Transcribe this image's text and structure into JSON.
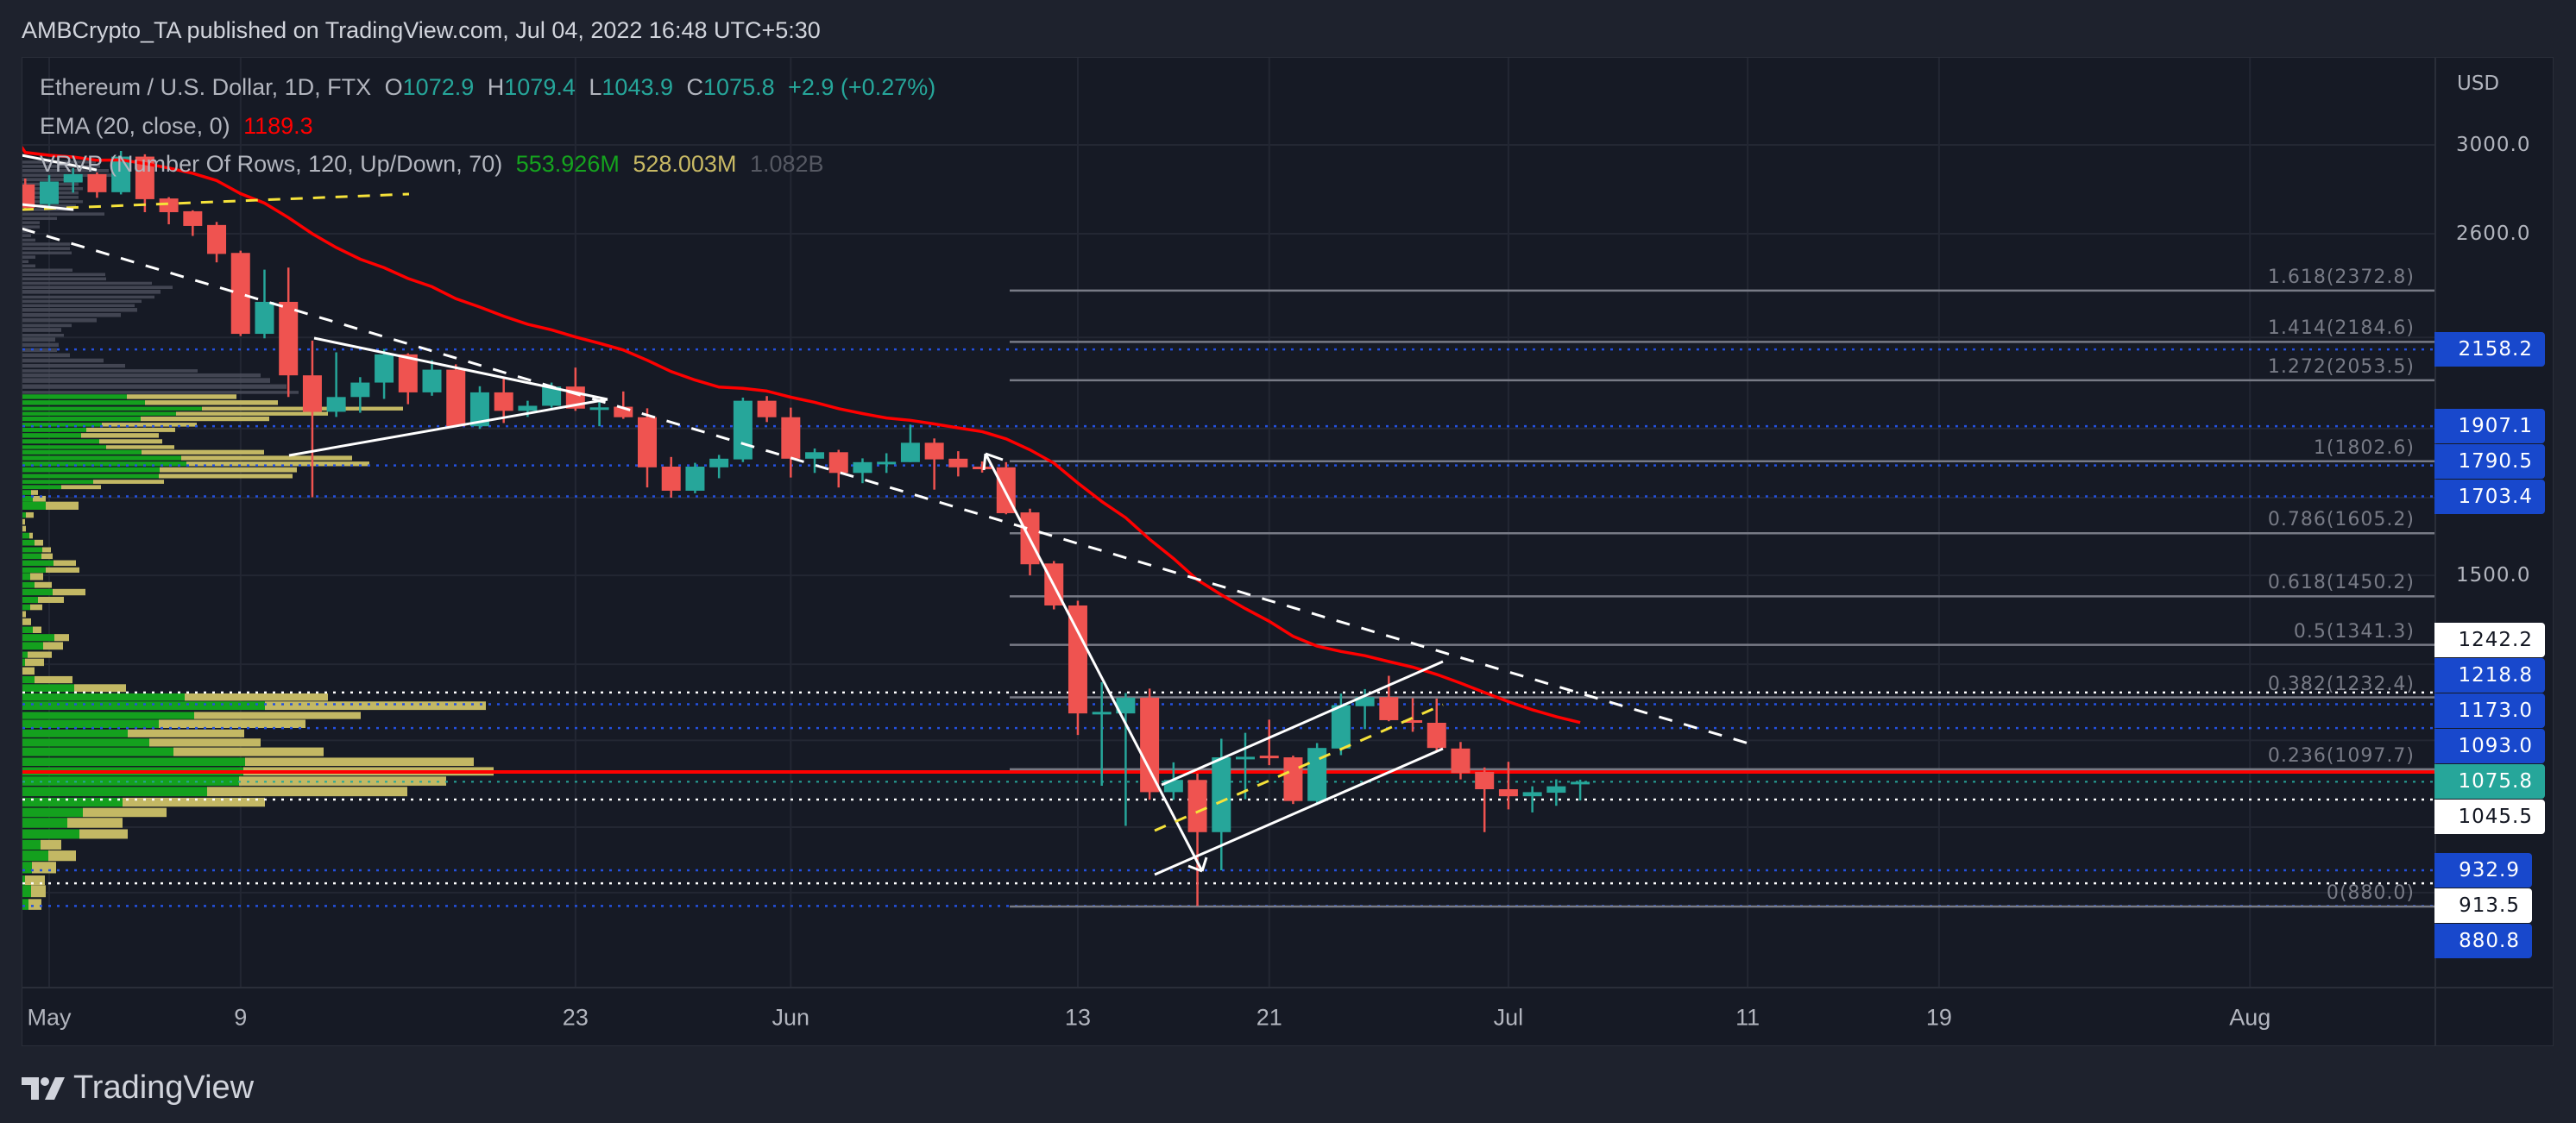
{
  "header": {
    "title": "AMBCrypto_TA published on TradingView.com, Jul 04, 2022 16:48 UTC+5:30"
  },
  "legend": {
    "symbol": "Ethereum / U.S. Dollar, 1D, FTX",
    "o_label": "O",
    "o": "1072.9",
    "h_label": "H",
    "h": "1079.4",
    "l_label": "L",
    "l": "1043.9",
    "c_label": "C",
    "c": "1075.8",
    "change": "+2.9 (+0.27%)",
    "ema_label": "EMA (20, close, 0)",
    "ema_value": "1189.3",
    "vrvp_label": "VRVP (Number Of Rows, 120, Up/Down, 70)",
    "vrvp_up": "553.926M",
    "vrvp_down": "528.003M",
    "vrvp_total": "1.082B"
  },
  "colors": {
    "up": "#26a69a",
    "down": "#ef5350",
    "ema": "#ff0000",
    "vp_up": "#14a01e",
    "vp_down": "#c3b864",
    "vp_outside": "#4a4e5a",
    "marker_blue": "#1848cc",
    "fib": "#787b86"
  },
  "price_axis": {
    "currency": "USD",
    "ticks": [
      {
        "label": "3000.0",
        "value": 3000
      },
      {
        "label": "2600.0",
        "value": 2600
      },
      {
        "label": "1500.0",
        "value": 1500
      }
    ],
    "markers": [
      {
        "label": "2158.2",
        "style": "blue"
      },
      {
        "label": "1907.1",
        "style": "blue"
      },
      {
        "label": "1790.5",
        "style": "blue"
      },
      {
        "label": "1703.4",
        "style": "blue"
      },
      {
        "label": "1242.2",
        "style": "white"
      },
      {
        "label": "1218.8",
        "style": "blue"
      },
      {
        "label": "1173.0",
        "style": "blue"
      },
      {
        "label": "1093.0",
        "style": "blue"
      },
      {
        "label": "1075.8",
        "style": "current"
      },
      {
        "label": "1045.5",
        "style": "white"
      },
      {
        "label": "932.9",
        "style": "blue"
      },
      {
        "label": "913.5",
        "style": "white"
      },
      {
        "label": "880.8",
        "style": "blue"
      }
    ]
  },
  "time_axis": [
    {
      "label": "May",
      "date": "2022-05-01"
    },
    {
      "label": "9",
      "date": "2022-05-09"
    },
    {
      "label": "23",
      "date": "2022-05-23"
    },
    {
      "label": "Jun",
      "date": "2022-06-01"
    },
    {
      "label": "13",
      "date": "2022-06-13"
    },
    {
      "label": "21",
      "date": "2022-06-21"
    },
    {
      "label": "Jul",
      "date": "2022-07-01"
    },
    {
      "label": "11",
      "date": "2022-07-11"
    },
    {
      "label": "19",
      "date": "2022-07-19"
    },
    {
      "label": "Aug",
      "date": "2022-08-01"
    }
  ],
  "chart_data": {
    "type": "candlestick",
    "title": "Ethereum / U.S. Dollar, 1D, FTX",
    "y_scale": "log",
    "ylim": [
      800,
      3100
    ],
    "xlim": [
      "2022-04-30",
      "2022-08-06"
    ],
    "grid": true,
    "candles": [
      [
        "2022-04-30",
        2815,
        2842,
        2705,
        2711
      ],
      [
        "2022-05-01",
        2727,
        2857,
        2711,
        2828
      ],
      [
        "2022-05-02",
        2824,
        2890,
        2778,
        2862
      ],
      [
        "2022-05-03",
        2862,
        2870,
        2755,
        2780
      ],
      [
        "2022-05-04",
        2780,
        2971,
        2770,
        2944
      ],
      [
        "2022-05-05",
        2944,
        2955,
        2692,
        2749
      ],
      [
        "2022-05-06",
        2752,
        2758,
        2640,
        2692
      ],
      [
        "2022-05-07",
        2696,
        2700,
        2591,
        2633
      ],
      [
        "2022-05-08",
        2637,
        2650,
        2483,
        2517
      ],
      [
        "2022-05-09",
        2521,
        2530,
        2205,
        2213
      ],
      [
        "2022-05-10",
        2213,
        2454,
        2197,
        2330
      ],
      [
        "2022-05-11",
        2330,
        2462,
        1999,
        2070
      ],
      [
        "2022-05-12",
        2070,
        2189,
        1701,
        1952
      ],
      [
        "2022-05-13",
        1952,
        2148,
        1936,
        1999
      ],
      [
        "2022-05-14",
        1999,
        2064,
        1949,
        2046
      ],
      [
        "2022-05-15",
        2046,
        2160,
        1993,
        2141
      ],
      [
        "2022-05-16",
        2141,
        2145,
        1976,
        2014
      ],
      [
        "2022-05-17",
        2014,
        2121,
        2003,
        2089
      ],
      [
        "2022-05-18",
        2089,
        2107,
        1905,
        1907
      ],
      [
        "2022-05-19",
        1907,
        2034,
        1899,
        2014
      ],
      [
        "2022-05-20",
        2014,
        2059,
        1917,
        1955
      ],
      [
        "2022-05-21",
        1955,
        1987,
        1936,
        1971
      ],
      [
        "2022-05-22",
        1971,
        2046,
        1965,
        2033
      ],
      [
        "2022-05-23",
        2033,
        2096,
        1955,
        1962
      ],
      [
        "2022-05-24",
        1962,
        1982,
        1907,
        1966
      ],
      [
        "2022-05-25",
        1968,
        2017,
        1930,
        1935
      ],
      [
        "2022-05-26",
        1935,
        1963,
        1728,
        1785
      ],
      [
        "2022-05-27",
        1787,
        1815,
        1700,
        1719
      ],
      [
        "2022-05-28",
        1719,
        1798,
        1712,
        1787
      ],
      [
        "2022-05-29",
        1785,
        1821,
        1754,
        1810
      ],
      [
        "2022-05-30",
        1808,
        1997,
        1800,
        1987
      ],
      [
        "2022-05-31",
        1987,
        2002,
        1920,
        1935
      ],
      [
        "2022-06-01",
        1935,
        1965,
        1756,
        1810
      ],
      [
        "2022-06-02",
        1810,
        1840,
        1769,
        1829
      ],
      [
        "2022-06-03",
        1829,
        1836,
        1728,
        1769
      ],
      [
        "2022-06-04",
        1769,
        1811,
        1740,
        1800
      ],
      [
        "2022-06-05",
        1800,
        1826,
        1769,
        1801
      ],
      [
        "2022-06-06",
        1800,
        1912,
        1800,
        1857
      ],
      [
        "2022-06-07",
        1857,
        1870,
        1722,
        1808
      ],
      [
        "2022-06-08",
        1810,
        1832,
        1759,
        1785
      ],
      [
        "2022-06-09",
        1787,
        1802,
        1770,
        1785
      ],
      [
        "2022-06-10",
        1785,
        1800,
        1655,
        1658
      ],
      [
        "2022-06-11",
        1660,
        1670,
        1500,
        1527
      ],
      [
        "2022-06-12",
        1529,
        1535,
        1420,
        1429
      ],
      [
        "2022-06-13",
        1429,
        1440,
        1160,
        1201
      ],
      [
        "2022-06-14",
        1199,
        1263,
        1069,
        1204
      ],
      [
        "2022-06-15",
        1201,
        1241,
        1002,
        1232
      ],
      [
        "2022-06-16",
        1232,
        1250,
        1045,
        1058
      ],
      [
        "2022-06-17",
        1058,
        1110,
        1045,
        1079
      ],
      [
        "2022-06-18",
        1079,
        1090,
        880.8,
        992
      ],
      [
        "2022-06-19",
        992,
        1153,
        932.9,
        1119
      ],
      [
        "2022-06-20",
        1118,
        1164,
        1046,
        1120
      ],
      [
        "2022-06-21",
        1122,
        1189,
        1105,
        1120
      ],
      [
        "2022-06-22",
        1119,
        1122,
        1038,
        1043
      ],
      [
        "2022-06-23",
        1043,
        1145,
        1040,
        1136
      ],
      [
        "2022-06-24",
        1135,
        1240,
        1123,
        1217
      ],
      [
        "2022-06-25",
        1215,
        1249,
        1171,
        1233
      ],
      [
        "2022-06-26",
        1233,
        1276,
        1186,
        1188
      ],
      [
        "2022-06-27",
        1188,
        1231,
        1166,
        1183
      ],
      [
        "2022-06-28",
        1183,
        1230,
        1131,
        1136
      ],
      [
        "2022-06-29",
        1135,
        1147,
        1080,
        1091
      ],
      [
        "2022-06-30",
        1093,
        1101,
        992,
        1063
      ],
      [
        "2022-07-01",
        1063,
        1111,
        1029,
        1051
      ],
      [
        "2022-07-02",
        1051,
        1068,
        1024,
        1058
      ],
      [
        "2022-07-03",
        1057,
        1080,
        1035,
        1068
      ],
      [
        "2022-07-04",
        1072.9,
        1079.4,
        1043.9,
        1075.8
      ]
    ],
    "ema": {
      "period": 20,
      "source": "close",
      "last": 1189.3
    },
    "fib_levels": [
      {
        "label": "1.618(2372.8)",
        "price": 2372.8
      },
      {
        "label": "1.414(2184.6)",
        "price": 2184.6
      },
      {
        "label": "1.272(2053.5)",
        "price": 2053.5
      },
      {
        "label": "1(1802.6)",
        "price": 1802.6
      },
      {
        "label": "0.786(1605.2)",
        "price": 1605.2
      },
      {
        "label": "0.618(1450.2)",
        "price": 1450.2
      },
      {
        "label": "0.5(1341.3)",
        "price": 1341.3
      },
      {
        "label": "0.382(1232.4)",
        "price": 1232.4
      },
      {
        "label": "0.236(1097.7)",
        "price": 1097.7
      },
      {
        "label": "0(880.0)",
        "price": 880.0
      }
    ],
    "horizontal_levels": {
      "blue_dotted": [
        2158.2,
        1907.1,
        1790.5,
        1703.4,
        1218.8,
        1173.0,
        1093.0,
        932.9,
        880.8
      ],
      "white_dotted": [
        1242.2,
        1045.5,
        913.5
      ],
      "current_price": 1075.8,
      "poc": 1093.0
    },
    "volume_profile": {
      "outside_value_area": [
        [
          2918,
          85
        ],
        [
          2898,
          90
        ],
        [
          2878,
          100
        ],
        [
          2857,
          110
        ],
        [
          2837,
          70
        ],
        [
          2816,
          65
        ],
        [
          2796,
          70
        ],
        [
          2777,
          65
        ],
        [
          2757,
          65
        ],
        [
          2738,
          70
        ],
        [
          2720,
          62
        ],
        [
          2703,
          60
        ],
        [
          2684,
          95
        ],
        [
          2665,
          40
        ],
        [
          2647,
          20
        ],
        [
          2629,
          20
        ],
        [
          2611,
          10
        ],
        [
          2592,
          10
        ],
        [
          2574,
          15
        ],
        [
          2557,
          55
        ],
        [
          2539,
          55
        ],
        [
          2521,
          57
        ],
        [
          2504,
          15
        ],
        [
          2486,
          7
        ],
        [
          2469,
          15
        ],
        [
          2452,
          58
        ],
        [
          2435,
          96
        ],
        [
          2418,
          97
        ],
        [
          2401,
          150
        ],
        [
          2385,
          174
        ],
        [
          2368,
          160
        ],
        [
          2348,
          153
        ],
        [
          2332,
          138
        ],
        [
          2316,
          130
        ],
        [
          2300,
          133
        ],
        [
          2281,
          114
        ],
        [
          2262,
          86
        ],
        [
          2243,
          57
        ],
        [
          2227,
          45
        ],
        [
          2208,
          48
        ],
        [
          2193,
          38
        ],
        [
          2174,
          42
        ],
        [
          2156,
          40
        ],
        [
          2138,
          55
        ],
        [
          2120,
          94
        ],
        [
          2102,
          119
        ],
        [
          2085,
          203
        ],
        [
          2070,
          276
        ],
        [
          2053,
          287
        ],
        [
          2033,
          306
        ],
        [
          2014,
          320
        ]
      ],
      "value_area": [
        [
          2000,
          121,
          127
        ],
        [
          1981,
          142,
          154
        ],
        [
          1962,
          208,
          233
        ],
        [
          1946,
          178,
          176
        ],
        [
          1930,
          137,
          149
        ],
        [
          1912,
          92,
          110
        ],
        [
          1896,
          74,
          103
        ],
        [
          1879,
          68,
          90
        ],
        [
          1861,
          89,
          73
        ],
        [
          1844,
          97,
          79
        ],
        [
          1829,
          138,
          142
        ],
        [
          1812,
          184,
          198
        ],
        [
          1795,
          190,
          212
        ],
        [
          1778,
          159,
          159
        ],
        [
          1760,
          158,
          155
        ],
        [
          1744,
          82,
          82
        ],
        [
          1729,
          45,
          46
        ],
        [
          1714,
          10,
          8
        ],
        [
          1697,
          12,
          15
        ],
        [
          1678,
          27,
          38
        ],
        [
          1653,
          4,
          9
        ],
        [
          1635,
          0,
          3
        ],
        [
          1617,
          0,
          4
        ],
        [
          1599,
          8,
          4
        ],
        [
          1581,
          14,
          10
        ],
        [
          1563,
          23,
          10
        ],
        [
          1547,
          22,
          13
        ],
        [
          1530,
          36,
          26
        ],
        [
          1513,
          27,
          39
        ],
        [
          1497,
          9,
          15
        ],
        [
          1477,
          14,
          20
        ],
        [
          1460,
          35,
          38
        ],
        [
          1442,
          18,
          30
        ],
        [
          1425,
          9,
          14
        ],
        [
          1409,
          0,
          4
        ],
        [
          1392,
          0,
          10
        ],
        [
          1374,
          12,
          10
        ],
        [
          1357,
          37,
          17
        ],
        [
          1339,
          24,
          23
        ],
        [
          1320,
          6,
          28
        ],
        [
          1304,
          3,
          22
        ],
        [
          1286,
          0,
          14
        ],
        [
          1268,
          14,
          44
        ],
        [
          1251,
          60,
          60
        ],
        [
          1233,
          188,
          166
        ],
        [
          1216,
          281,
          256
        ],
        [
          1197,
          199,
          193
        ],
        [
          1181,
          158,
          170
        ],
        [
          1163,
          122,
          135
        ],
        [
          1146,
          147,
          129
        ],
        [
          1129,
          175,
          174
        ],
        [
          1111,
          258,
          265
        ],
        [
          1094,
          256,
          290
        ],
        [
          1077,
          251,
          240
        ],
        [
          1059,
          214,
          232
        ],
        [
          1041,
          116,
          165
        ],
        [
          1024,
          70,
          97
        ],
        [
          1007,
          52,
          64
        ],
        [
          989,
          66,
          56
        ],
        [
          972,
          21,
          24
        ],
        [
          955,
          30,
          32
        ],
        [
          937,
          11,
          28
        ],
        [
          918,
          3,
          23
        ],
        [
          902,
          10,
          17
        ],
        [
          883,
          7,
          15
        ]
      ]
    }
  },
  "footer": {
    "logo_text": "TradingView"
  }
}
